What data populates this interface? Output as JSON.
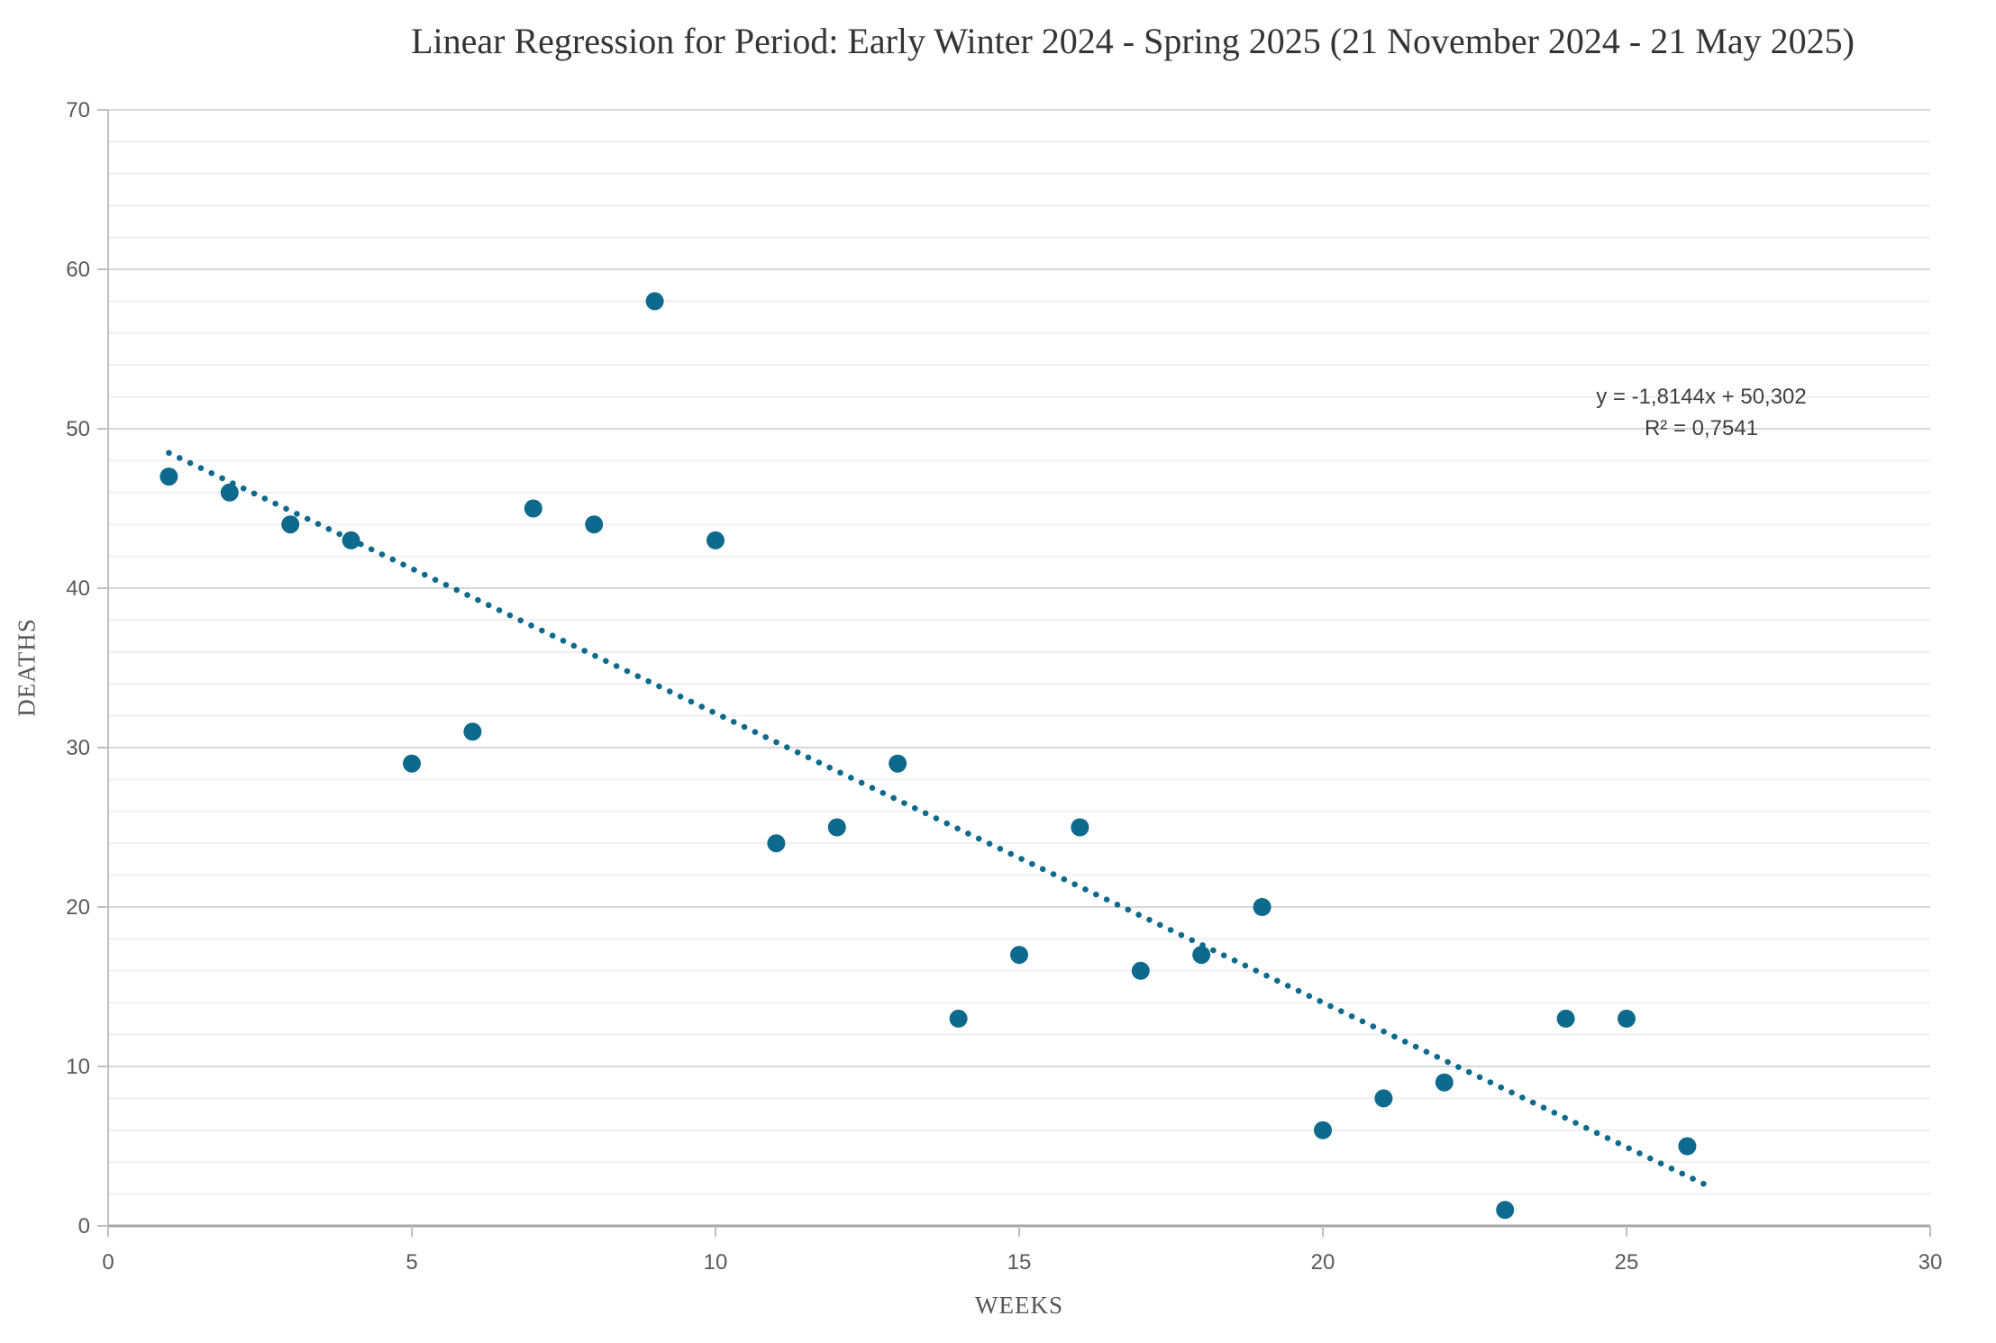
{
  "chart_data": {
    "type": "scatter",
    "title": "Linear Regression for Period: Early Winter 2024 - Spring 2025 (21 November 2024 - 21 May 2025)",
    "xlabel": "WEEKS",
    "ylabel": "DEATHS",
    "x": [
      1,
      2,
      3,
      4,
      5,
      6,
      7,
      8,
      9,
      10,
      11,
      12,
      13,
      14,
      15,
      16,
      17,
      18,
      19,
      20,
      21,
      22,
      23,
      24,
      25,
      26
    ],
    "y": [
      47,
      46,
      44,
      43,
      29,
      31,
      45,
      44,
      58,
      43,
      24,
      25,
      29,
      13,
      17,
      25,
      16,
      17,
      20,
      6,
      8,
      9,
      1,
      13,
      13,
      5
    ],
    "xlim": [
      0,
      30
    ],
    "ylim": [
      0,
      70
    ],
    "xticks": [
      0,
      5,
      10,
      15,
      20,
      25,
      30
    ],
    "yticks": [
      0,
      10,
      20,
      30,
      40,
      50,
      60,
      70
    ],
    "y_minor_step": 2,
    "grid": "horizontal major and minor, no vertical gridlines",
    "legend": "none",
    "trendline": {
      "style": "dotted",
      "slope": -1.8144,
      "intercept": 50.302,
      "x_start": 1,
      "x_end": 26.3,
      "equation_label": "y = -1,8144x + 50,302",
      "r2_label": "R² = 0,7541"
    },
    "colors": {
      "marker": "#0E6A8C",
      "trendline": "#0E6A8C",
      "grid_minor": "#EFEFEF",
      "grid_major": "#D8D8D8",
      "axis_line": "#BFBFBF",
      "baseline": "#A6A6A6",
      "tick": "#BFBFBF",
      "tick_label": "#595959"
    }
  }
}
